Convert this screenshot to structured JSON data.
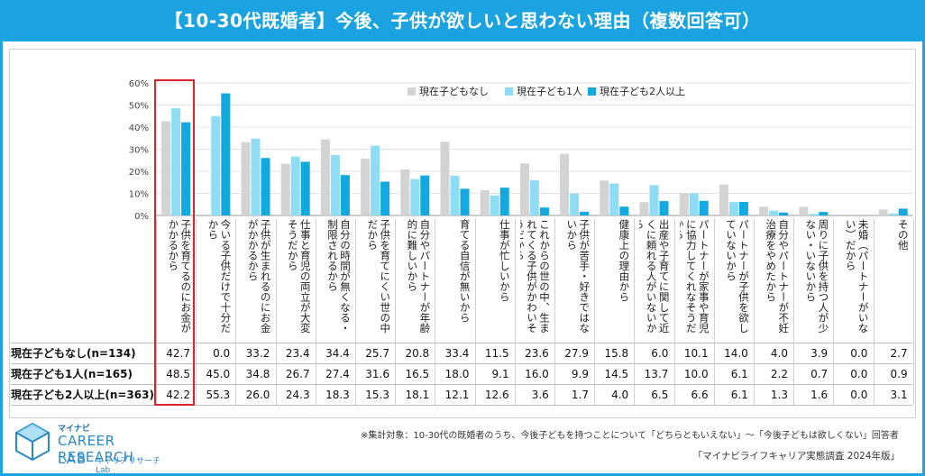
{
  "title": "【10-30代既婚者】今後、子供が欲しいと思わない理由（複数回答可）",
  "chart_data": {
    "type": "bar",
    "ylim": [
      0,
      60
    ],
    "y_ticks": [
      "0%",
      "10%",
      "20%",
      "30%",
      "40%",
      "50%",
      "60%"
    ],
    "legend_position": "top-center",
    "categories": [
      "子供を育てるのにお金がかかるから",
      "今いる子供だけで十分だから",
      "子供が生まれるのにお金がかかるから",
      "仕事と育児の両立が大変そうだから",
      "自分の時間が無くなる・制限されるから",
      "子供を育てにくい世の中だから",
      "自分やパートナーが年齢的に難しいから",
      "育てる自信が無いから",
      "仕事が忙しいから",
      "これからの世の中、生まれてくる子供がかわいそうだから",
      "子供が苦手・好きではないから",
      "健康上の理由から",
      "出産や子育てに関して近くに頼れる人がいないから",
      "パートナーが家事や育児に協力してくれなそうだから",
      "パートナーが子供を欲していないから",
      "自分やパートナーが不妊治療をやめたから",
      "周りに子供を持つ人が少ない・いないから",
      "未婚（パートナーがいない）だから",
      "その他"
    ],
    "series": [
      {
        "name": "現在子どもなし",
        "row_label": "現在子どもなし(n=134)",
        "color": "#d3d3d3",
        "values": [
          42.7,
          0.0,
          33.2,
          23.4,
          34.4,
          25.7,
          20.8,
          33.4,
          11.5,
          23.6,
          27.9,
          15.8,
          6.0,
          10.1,
          14.0,
          4.0,
          3.9,
          0.0,
          2.7
        ]
      },
      {
        "name": "現在子ども1人",
        "row_label": "現在子ども1人(n=165)",
        "color": "#8fdcf5",
        "values": [
          48.5,
          45.0,
          34.8,
          26.7,
          27.4,
          31.6,
          16.5,
          18.0,
          9.1,
          16.0,
          9.9,
          14.5,
          13.7,
          10.0,
          6.1,
          2.2,
          0.7,
          0.0,
          0.9
        ]
      },
      {
        "name": "現在子ども2人以上",
        "row_label": "現在子ども2人以上(n=363)",
        "color": "#12a9e0",
        "values": [
          42.2,
          55.3,
          26.0,
          24.3,
          18.3,
          15.3,
          18.1,
          12.1,
          12.6,
          3.6,
          1.7,
          4.0,
          6.5,
          6.6,
          6.1,
          1.3,
          1.6,
          0.0,
          3.1
        ]
      }
    ]
  },
  "footnote": "※集計対象：10-30代の既婚者のうち、今後子どもを持つことについて「どちらともいえない」～「今後子どもは欲しくない」回答者",
  "source": "「マイナビライフキャリア実態調査 2024年版」",
  "logo": {
    "small": "マイナビ",
    "main": "CAREER RESEARCH",
    "lab": "LAB",
    "sub": "キャリアリサーチLab"
  }
}
